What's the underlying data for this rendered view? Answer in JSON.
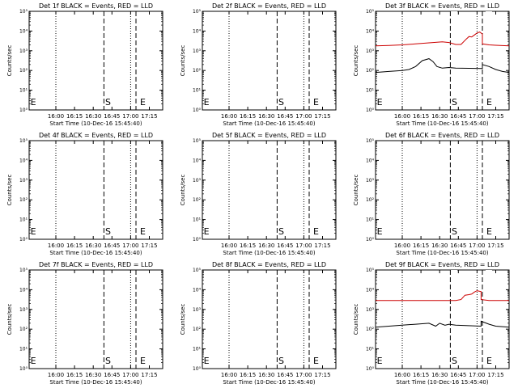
{
  "figure": {
    "background": "#ffffff",
    "axis_color": "#000000"
  },
  "chart_data": [
    {
      "type": "line",
      "title": "Det 1f BLACK = Events, RED = LLD",
      "ylabel": "Counts/sec",
      "xlabel": "Start Time (10-Dec-16 15:45:40)",
      "yscale": "log",
      "ylim_exp": [
        0,
        5
      ],
      "ytick_labels": [
        "10⁰",
        "10¹",
        "10²",
        "10³",
        "10⁴",
        "10⁵"
      ],
      "xlim": [
        0,
        1
      ],
      "xtick_pos": [
        0.2,
        0.34,
        0.48,
        0.62,
        0.76,
        0.9
      ],
      "xtick_labels": [
        "16:00",
        "16:15",
        "16:30",
        "16:45",
        "17:00",
        "17:15"
      ],
      "dotted_lines": [
        0.2,
        0.76
      ],
      "dashed_lines": [
        0.56,
        0.8
      ],
      "markers": [
        {
          "label": "E",
          "x": 0.01
        },
        {
          "label": "S",
          "x": 0.57
        },
        {
          "label": "E",
          "x": 0.83
        }
      ],
      "series": []
    },
    {
      "type": "line",
      "title": "Det 2f BLACK = Events, RED = LLD",
      "ylabel": "Counts/sec",
      "xlabel": "Start Time (10-Dec-16 15:45:40)",
      "yscale": "log",
      "ylim_exp": [
        0,
        5
      ],
      "ytick_labels": [
        "10⁰",
        "10¹",
        "10²",
        "10³",
        "10⁴",
        "10⁵"
      ],
      "xlim": [
        0,
        1
      ],
      "xtick_pos": [
        0.2,
        0.34,
        0.48,
        0.62,
        0.76,
        0.9
      ],
      "xtick_labels": [
        "16:00",
        "16:15",
        "16:30",
        "16:45",
        "17:00",
        "17:15"
      ],
      "dotted_lines": [
        0.2,
        0.76
      ],
      "dashed_lines": [
        0.56,
        0.8
      ],
      "markers": [
        {
          "label": "E",
          "x": 0.01
        },
        {
          "label": "S",
          "x": 0.57
        },
        {
          "label": "E",
          "x": 0.83
        }
      ],
      "series": []
    },
    {
      "type": "line",
      "title": "Det 3f BLACK = Events, RED = LLD",
      "ylabel": "Counts/sec",
      "xlabel": "Start Time (10-Dec-16 15:45:40)",
      "yscale": "log",
      "ylim_exp": [
        0,
        5
      ],
      "ytick_labels": [
        "10⁰",
        "10¹",
        "10²",
        "10³",
        "10⁴",
        "10⁵"
      ],
      "xlim": [
        0,
        1
      ],
      "xtick_pos": [
        0.2,
        0.34,
        0.48,
        0.62,
        0.76,
        0.9
      ],
      "xtick_labels": [
        "16:00",
        "16:15",
        "16:30",
        "16:45",
        "17:00",
        "17:15"
      ],
      "dotted_lines": [
        0.2,
        0.76
      ],
      "dashed_lines": [
        0.56,
        0.8
      ],
      "markers": [
        {
          "label": "E",
          "x": 0.01
        },
        {
          "label": "S",
          "x": 0.57
        },
        {
          "label": "E",
          "x": 0.83
        }
      ],
      "series": [
        {
          "color": "#cc0000",
          "points": [
            [
              0.0,
              3.25
            ],
            [
              0.1,
              3.27
            ],
            [
              0.2,
              3.3
            ],
            [
              0.3,
              3.35
            ],
            [
              0.4,
              3.4
            ],
            [
              0.5,
              3.45
            ],
            [
              0.55,
              3.42
            ],
            [
              0.6,
              3.32
            ],
            [
              0.64,
              3.32
            ],
            [
              0.68,
              3.6
            ],
            [
              0.7,
              3.72
            ],
            [
              0.72,
              3.7
            ],
            [
              0.74,
              3.8
            ],
            [
              0.76,
              3.9
            ],
            [
              0.78,
              3.95
            ],
            [
              0.8,
              3.85
            ],
            [
              0.8,
              3.35
            ],
            [
              0.85,
              3.3
            ],
            [
              0.9,
              3.28
            ],
            [
              1.0,
              3.25
            ]
          ]
        },
        {
          "color": "#000000",
          "points": [
            [
              0.0,
              1.9
            ],
            [
              0.1,
              1.95
            ],
            [
              0.2,
              2.0
            ],
            [
              0.25,
              2.05
            ],
            [
              0.3,
              2.2
            ],
            [
              0.35,
              2.5
            ],
            [
              0.4,
              2.6
            ],
            [
              0.43,
              2.45
            ],
            [
              0.46,
              2.2
            ],
            [
              0.5,
              2.12
            ],
            [
              0.55,
              2.15
            ],
            [
              0.6,
              2.12
            ],
            [
              0.8,
              2.1
            ],
            [
              0.8,
              2.3
            ],
            [
              0.85,
              2.2
            ],
            [
              0.9,
              2.05
            ],
            [
              0.95,
              1.95
            ],
            [
              1.0,
              1.9
            ]
          ]
        }
      ]
    },
    {
      "type": "line",
      "title": "Det 4f BLACK = Events, RED = LLD",
      "ylabel": "Counts/sec",
      "xlabel": "Start Time (10-Dec-16 15:45:40)",
      "yscale": "log",
      "ylim_exp": [
        0,
        5
      ],
      "ytick_labels": [
        "10⁰",
        "10¹",
        "10²",
        "10³",
        "10⁴",
        "10⁵"
      ],
      "xlim": [
        0,
        1
      ],
      "xtick_pos": [
        0.2,
        0.34,
        0.48,
        0.62,
        0.76,
        0.9
      ],
      "xtick_labels": [
        "16:00",
        "16:15",
        "16:30",
        "16:45",
        "17:00",
        "17:15"
      ],
      "dotted_lines": [
        0.2,
        0.76
      ],
      "dashed_lines": [
        0.56,
        0.8
      ],
      "markers": [
        {
          "label": "E",
          "x": 0.01
        },
        {
          "label": "S",
          "x": 0.57
        },
        {
          "label": "E",
          "x": 0.83
        }
      ],
      "series": []
    },
    {
      "type": "line",
      "title": "Det 5f BLACK = Events, RED = LLD",
      "ylabel": "Counts/sec",
      "xlabel": "Start Time (10-Dec-16 15:45:40)",
      "yscale": "log",
      "ylim_exp": [
        0,
        5
      ],
      "ytick_labels": [
        "10⁰",
        "10¹",
        "10²",
        "10³",
        "10⁴",
        "10⁵"
      ],
      "xlim": [
        0,
        1
      ],
      "xtick_pos": [
        0.2,
        0.34,
        0.48,
        0.62,
        0.76,
        0.9
      ],
      "xtick_labels": [
        "16:00",
        "16:15",
        "16:30",
        "16:45",
        "17:00",
        "17:15"
      ],
      "dotted_lines": [
        0.2,
        0.76
      ],
      "dashed_lines": [
        0.56,
        0.8
      ],
      "markers": [
        {
          "label": "E",
          "x": 0.01
        },
        {
          "label": "S",
          "x": 0.57
        },
        {
          "label": "E",
          "x": 0.83
        }
      ],
      "series": []
    },
    {
      "type": "line",
      "title": "Det 6f BLACK = Events, RED = LLD",
      "ylabel": "Counts/sec",
      "xlabel": "Start Time (10-Dec-16 15:45:40)",
      "yscale": "log",
      "ylim_exp": [
        0,
        5
      ],
      "ytick_labels": [
        "10⁰",
        "10¹",
        "10²",
        "10³",
        "10⁴",
        "10⁵"
      ],
      "xlim": [
        0,
        1
      ],
      "xtick_pos": [
        0.2,
        0.34,
        0.48,
        0.62,
        0.76,
        0.9
      ],
      "xtick_labels": [
        "16:00",
        "16:15",
        "16:30",
        "16:45",
        "17:00",
        "17:15"
      ],
      "dotted_lines": [
        0.2,
        0.76
      ],
      "dashed_lines": [
        0.56,
        0.8
      ],
      "markers": [
        {
          "label": "E",
          "x": 0.01
        },
        {
          "label": "S",
          "x": 0.57
        },
        {
          "label": "E",
          "x": 0.83
        }
      ],
      "series": []
    },
    {
      "type": "line",
      "title": "Det 7f BLACK = Events, RED = LLD",
      "ylabel": "Counts/sec",
      "xlabel": "Start Time (10-Dec-16 15:45:40)",
      "yscale": "log",
      "ylim_exp": [
        0,
        5
      ],
      "ytick_labels": [
        "10⁰",
        "10¹",
        "10²",
        "10³",
        "10⁴",
        "10⁵"
      ],
      "xlim": [
        0,
        1
      ],
      "xtick_pos": [
        0.2,
        0.34,
        0.48,
        0.62,
        0.76,
        0.9
      ],
      "xtick_labels": [
        "16:00",
        "16:15",
        "16:30",
        "16:45",
        "17:00",
        "17:15"
      ],
      "dotted_lines": [
        0.2,
        0.76
      ],
      "dashed_lines": [
        0.56,
        0.8
      ],
      "markers": [
        {
          "label": "E",
          "x": 0.01
        },
        {
          "label": "S",
          "x": 0.57
        },
        {
          "label": "E",
          "x": 0.83
        }
      ],
      "series": []
    },
    {
      "type": "line",
      "title": "Det 8f BLACK = Events, RED = LLD",
      "ylabel": "Counts/sec",
      "xlabel": "Start Time (10-Dec-16 15:45:40)",
      "yscale": "log",
      "ylim_exp": [
        0,
        5
      ],
      "ytick_labels": [
        "10⁰",
        "10¹",
        "10²",
        "10³",
        "10⁴",
        "10⁵"
      ],
      "xlim": [
        0,
        1
      ],
      "xtick_pos": [
        0.2,
        0.34,
        0.48,
        0.62,
        0.76,
        0.9
      ],
      "xtick_labels": [
        "16:00",
        "16:15",
        "16:30",
        "16:45",
        "17:00",
        "17:15"
      ],
      "dotted_lines": [
        0.2,
        0.76
      ],
      "dashed_lines": [
        0.56,
        0.8
      ],
      "markers": [
        {
          "label": "E",
          "x": 0.01
        },
        {
          "label": "S",
          "x": 0.57
        },
        {
          "label": "E",
          "x": 0.83
        }
      ],
      "series": []
    },
    {
      "type": "line",
      "title": "Det 9f BLACK = Events, RED = LLD",
      "ylabel": "Counts/sec",
      "xlabel": "Start Time (10-Dec-16 15:45:40)",
      "yscale": "log",
      "ylim_exp": [
        0,
        5
      ],
      "ytick_labels": [
        "10⁰",
        "10¹",
        "10²",
        "10³",
        "10⁴",
        "10⁵"
      ],
      "xlim": [
        0,
        1
      ],
      "xtick_pos": [
        0.2,
        0.34,
        0.48,
        0.62,
        0.76,
        0.9
      ],
      "xtick_labels": [
        "16:00",
        "16:15",
        "16:30",
        "16:45",
        "17:00",
        "17:15"
      ],
      "dotted_lines": [
        0.2,
        0.76
      ],
      "dashed_lines": [
        0.56,
        0.8
      ],
      "markers": [
        {
          "label": "E",
          "x": 0.01
        },
        {
          "label": "S",
          "x": 0.57
        },
        {
          "label": "E",
          "x": 0.83
        }
      ],
      "series": [
        {
          "color": "#cc0000",
          "points": [
            [
              0.0,
              3.45
            ],
            [
              0.3,
              3.45
            ],
            [
              0.6,
              3.45
            ],
            [
              0.64,
              3.5
            ],
            [
              0.67,
              3.72
            ],
            [
              0.7,
              3.75
            ],
            [
              0.72,
              3.78
            ],
            [
              0.74,
              3.88
            ],
            [
              0.76,
              3.95
            ],
            [
              0.79,
              3.9
            ],
            [
              0.79,
              3.5
            ],
            [
              0.85,
              3.45
            ],
            [
              1.0,
              3.45
            ]
          ]
        },
        {
          "color": "#000000",
          "points": [
            [
              0.0,
              2.1
            ],
            [
              0.1,
              2.15
            ],
            [
              0.2,
              2.2
            ],
            [
              0.3,
              2.25
            ],
            [
              0.4,
              2.3
            ],
            [
              0.45,
              2.15
            ],
            [
              0.48,
              2.3
            ],
            [
              0.52,
              2.2
            ],
            [
              0.55,
              2.25
            ],
            [
              0.6,
              2.2
            ],
            [
              0.79,
              2.15
            ],
            [
              0.79,
              2.4
            ],
            [
              0.85,
              2.25
            ],
            [
              0.9,
              2.15
            ],
            [
              1.0,
              2.1
            ]
          ]
        }
      ]
    }
  ]
}
